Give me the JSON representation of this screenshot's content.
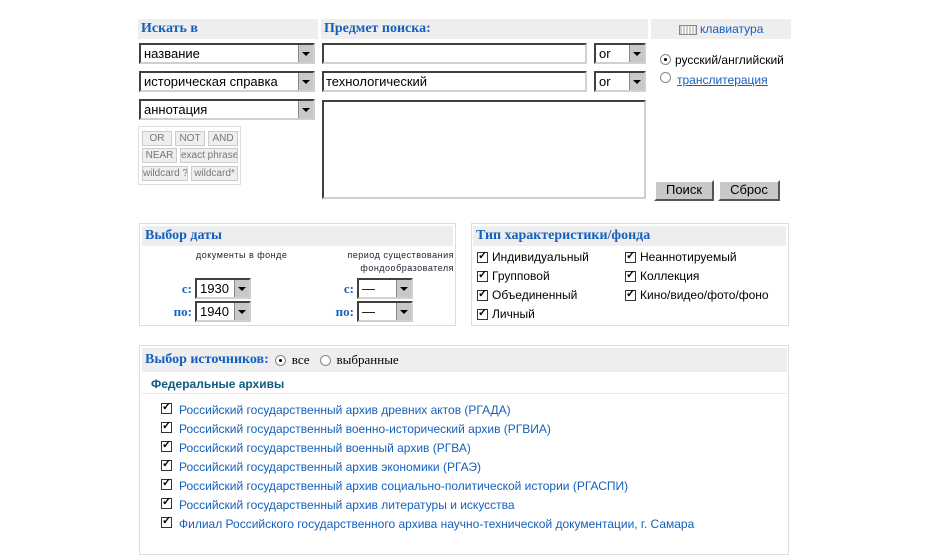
{
  "search": {
    "search_in_label": "Искать в",
    "subject_label": "Предмет поиска:",
    "keyboard_label": "клавиатура",
    "rows": [
      {
        "field": "название",
        "value": "",
        "op": "or"
      },
      {
        "field": "историческая справка",
        "value": "технологический",
        "op": "or"
      },
      {
        "field": "аннотация"
      }
    ],
    "operators": [
      "OR",
      "NOT",
      "AND",
      "NEAR",
      "exact phrase",
      "wildcard ?",
      "wildcard*"
    ],
    "lang_options": [
      "русский/английский",
      "транслитерация"
    ],
    "lang_selected": 0,
    "search_button": "Поиск",
    "reset_button": "Сброс"
  },
  "date": {
    "title": "Выбор даты",
    "col1": "документы в фонде",
    "col2a": "период существования",
    "col2b": "фондообразователя",
    "from": "с:",
    "to": "по:",
    "doc_from": "1930",
    "doc_to": "1940",
    "period_from": "—",
    "period_to": "—"
  },
  "type": {
    "title": "Тип характеристики/фонда",
    "items": [
      {
        "label": "Индивидуальный",
        "checked": true
      },
      {
        "label": "Групповой",
        "checked": true
      },
      {
        "label": "Объединенный",
        "checked": true
      },
      {
        "label": "Личный",
        "checked": true
      },
      {
        "label": "Неаннотируемый",
        "checked": true
      },
      {
        "label": "Коллекция",
        "checked": true
      },
      {
        "label": "Кино/видео/фото/фоно",
        "checked": true
      }
    ]
  },
  "sources": {
    "title": "Выбор источников:",
    "all": "все",
    "selected": "выбранные",
    "mode": "all",
    "group": "Федеральные архивы",
    "archives": [
      "Российский государственный архив древних актов (РГАДА)",
      "Российский государственный военно-исторический архив (РГВИА)",
      "Российский государственный военный архив (РГВА)",
      "Российский государственный архив экономики (РГАЭ)",
      "Российский государственный архив социально-политической истории (РГАСПИ)",
      "Российский государственный архив литературы и искусства",
      "Филиал Российского государственного архива научно-технической документации, г. Самара"
    ]
  },
  "colors": {
    "accent": "#1560bd",
    "header_bg": "#eeeeee"
  }
}
